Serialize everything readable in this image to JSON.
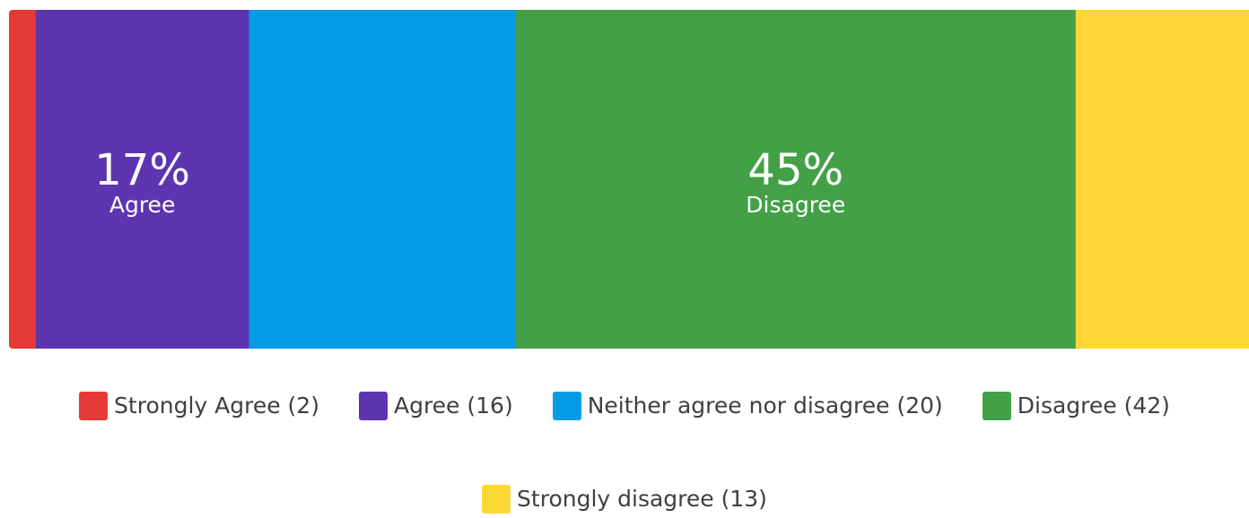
{
  "chart_data": {
    "type": "bar",
    "orientation": "horizontal-100%-stacked",
    "categories": [
      "Strongly Agree",
      "Agree",
      "Neither agree nor disagree",
      "Disagree",
      "Strongly disagree"
    ],
    "values": [
      2,
      16,
      20,
      42,
      13
    ],
    "percent_labels": [
      {
        "category": "Agree",
        "percent": "17%",
        "name": "Agree"
      },
      {
        "category": "Disagree",
        "percent": "45%",
        "name": "Disagree"
      }
    ],
    "legend": [
      {
        "label": "Strongly Agree (2)",
        "color": "#e53935"
      },
      {
        "label": "Agree (16)",
        "color": "#5e35b1"
      },
      {
        "label": "Neither agree nor disagree (20)",
        "color": "#039be5"
      },
      {
        "label": "Disagree (42)",
        "color": "#43a047"
      },
      {
        "label": "Strongly disagree (13)",
        "color": "#fdd835"
      }
    ],
    "legend_position": "bottom",
    "colors": [
      "#e53935",
      "#5e35b1",
      "#039be5",
      "#43a047",
      "#fdd835"
    ],
    "grid": false
  }
}
